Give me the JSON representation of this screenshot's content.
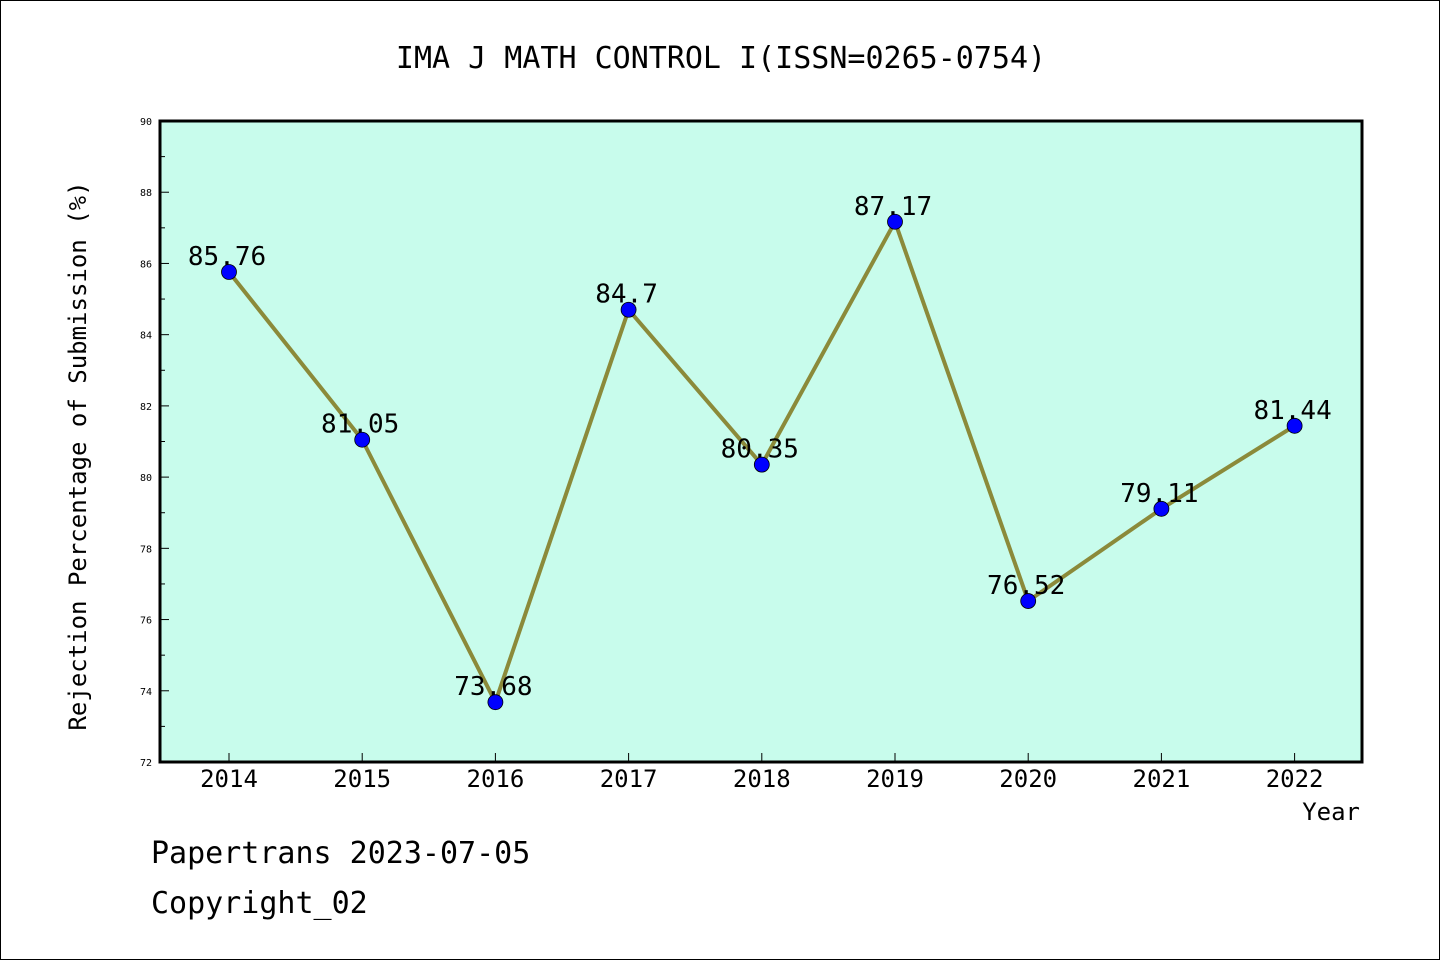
{
  "chart_data": {
    "type": "line",
    "title": "IMA J MATH CONTROL I(ISSN=0265-0754)",
    "xlabel": "Year",
    "ylabel": "Rejection Percentage of Submission (%)",
    "categories": [
      "2014",
      "2015",
      "2016",
      "2017",
      "2018",
      "2019",
      "2020",
      "2021",
      "2022"
    ],
    "values": [
      85.76,
      81.05,
      73.68,
      84.7,
      80.35,
      87.17,
      76.52,
      79.11,
      81.44
    ],
    "data_labels": [
      "85.76",
      "81.05",
      "73.68",
      "84.7",
      "80.35",
      "87.17",
      "76.52",
      "79.11",
      "81.44"
    ],
    "ylim": [
      72,
      90
    ],
    "yticks": [
      72,
      74,
      76,
      78,
      80,
      82,
      84,
      86,
      88,
      90
    ],
    "grid": false,
    "colors": {
      "plot_background": "#c8fcec",
      "line": "#8b8a3a",
      "marker": "#0000ff"
    }
  },
  "footer": {
    "line1": "Papertrans 2023-07-05",
    "line2": "Copyright_02"
  }
}
